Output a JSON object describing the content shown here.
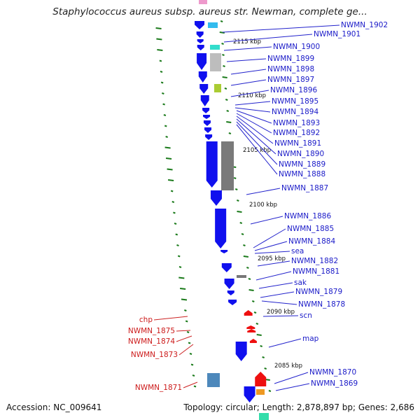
{
  "title": "Staphylococcus aureus subsp. aureus str. Newman, complete ge...",
  "accession_text": "Accession: NC_009641",
  "summary_text": "Topology: circular; Length: 2,878,897 bp; Genes: 2,686",
  "colors": {
    "forward_gene": "#1010ee",
    "reverse_gene": "#ee1010",
    "backbone": "#888888",
    "gc_tick": "#1a7a1a"
  },
  "scale_labels": [
    "2115 kbp",
    "2110 kbp",
    "2105 kbp",
    "2100 kbp",
    "2095 kbp",
    "2090 kbp",
    "2085 kbp"
  ],
  "right_labels": [
    "NWMN_1902",
    "NWMN_1901",
    "NWMN_1900",
    "NWMN_1899",
    "NWMN_1898",
    "NWMN_1897",
    "NWMN_1896",
    "NWMN_1895",
    "NWMN_1894",
    "NWMN_1893",
    "NWMN_1892",
    "NWMN_1891",
    "NWMN_1890",
    "NWMN_1889",
    "NWMN_1888",
    "NWMN_1887",
    "NWMN_1886",
    "NWMN_1885",
    "NWMN_1884",
    "sea",
    "NWMN_1882",
    "NWMN_1881",
    "sak",
    "NWMN_1879",
    "NWMN_1878",
    "scn",
    "map",
    "NWMN_1870",
    "NWMN_1869"
  ],
  "left_labels": [
    "chp",
    "NWMN_1875",
    "NWMN_1874",
    "NWMN_1873",
    "NWMN_1871"
  ]
}
